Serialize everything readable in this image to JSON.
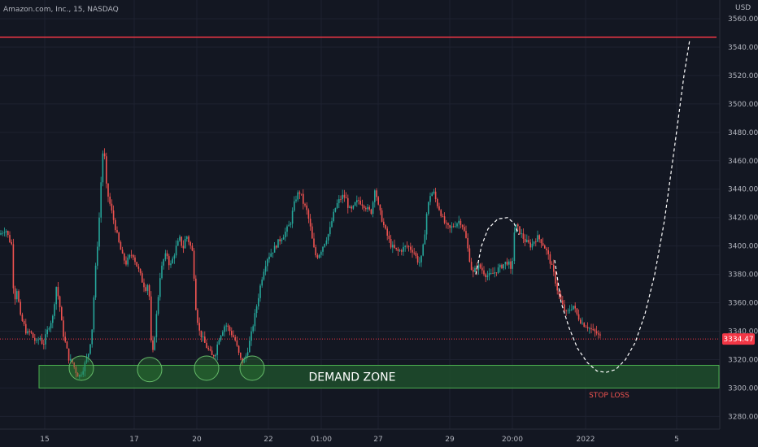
{
  "symbol_title": "Amazon.com, Inc., 15, NASDAQ",
  "currency": "USD",
  "current_price": "3334.47",
  "annotations": {
    "demand_zone": "DEMAND ZONE",
    "stop_loss": "STOP LOSS"
  },
  "colors": {
    "background": "#131722",
    "grid": "#1e2230",
    "axis_text": "#b2b5be",
    "up": "#26a69a",
    "down": "#ef5350",
    "resistance": "#f23645",
    "zone_fill": "#1e4d2b",
    "zone_border": "#4caf50",
    "price_label": "#f23645",
    "projection": "#ffffff"
  },
  "chart_data": {
    "type": "candlestick",
    "title": "Amazon.com, Inc., 15, NASDAQ",
    "ylabel": "USD",
    "ylim": [
      3270,
      3565
    ],
    "y_ticks": [
      "3280.00",
      "3300.00",
      "3320.00",
      "3340.00",
      "3360.00",
      "3380.00",
      "3400.00",
      "3420.00",
      "3440.00",
      "3460.00",
      "3480.00",
      "3500.00",
      "3520.00",
      "3540.00",
      "3560.00"
    ],
    "x_tick_labels": [
      "15",
      "17",
      "20",
      "22",
      "01:00",
      "27",
      "29",
      "20:00",
      "2022",
      "5"
    ],
    "resistance_level": 3547,
    "demand_zone": [
      3300,
      3316
    ],
    "last_price": 3334.47,
    "price_path": [
      [
        0,
        3408
      ],
      [
        4,
        3410
      ],
      [
        8,
        3412
      ],
      [
        12,
        3405
      ],
      [
        16,
        3400
      ],
      [
        18,
        3360
      ],
      [
        22,
        3370
      ],
      [
        26,
        3350
      ],
      [
        30,
        3345
      ],
      [
        34,
        3338
      ],
      [
        38,
        3340
      ],
      [
        42,
        3335
      ],
      [
        46,
        3332
      ],
      [
        50,
        3336
      ],
      [
        54,
        3330
      ],
      [
        58,
        3338
      ],
      [
        62,
        3345
      ],
      [
        66,
        3350
      ],
      [
        70,
        3372
      ],
      [
        74,
        3360
      ],
      [
        78,
        3340
      ],
      [
        82,
        3330
      ],
      [
        86,
        3320
      ],
      [
        90,
        3318
      ],
      [
        94,
        3312
      ],
      [
        98,
        3308
      ],
      [
        102,
        3312
      ],
      [
        106,
        3318
      ],
      [
        110,
        3325
      ],
      [
        114,
        3340
      ],
      [
        118,
        3380
      ],
      [
        122,
        3410
      ],
      [
        124,
        3430
      ],
      [
        126,
        3455
      ],
      [
        128,
        3470
      ],
      [
        130,
        3460
      ],
      [
        132,
        3440
      ],
      [
        136,
        3430
      ],
      [
        140,
        3420
      ],
      [
        144,
        3410
      ],
      [
        148,
        3400
      ],
      [
        152,
        3392
      ],
      [
        156,
        3388
      ],
      [
        160,
        3392
      ],
      [
        164,
        3395
      ],
      [
        168,
        3388
      ],
      [
        172,
        3382
      ],
      [
        176,
        3375
      ],
      [
        180,
        3370
      ],
      [
        184,
        3375
      ],
      [
        186,
        3340
      ],
      [
        188,
        3320
      ],
      [
        190,
        3330
      ],
      [
        194,
        3355
      ],
      [
        198,
        3380
      ],
      [
        202,
        3390
      ],
      [
        206,
        3395
      ],
      [
        210,
        3385
      ],
      [
        214,
        3392
      ],
      [
        218,
        3400
      ],
      [
        222,
        3405
      ],
      [
        226,
        3398
      ],
      [
        230,
        3408
      ],
      [
        234,
        3402
      ],
      [
        238,
        3395
      ],
      [
        242,
        3355
      ],
      [
        246,
        3340
      ],
      [
        250,
        3335
      ],
      [
        254,
        3330
      ],
      [
        258,
        3326
      ],
      [
        262,
        3322
      ],
      [
        266,
        3325
      ],
      [
        270,
        3335
      ],
      [
        274,
        3340
      ],
      [
        278,
        3345
      ],
      [
        282,
        3342
      ],
      [
        286,
        3338
      ],
      [
        290,
        3334
      ],
      [
        294,
        3325
      ],
      [
        298,
        3318
      ],
      [
        302,
        3320
      ],
      [
        306,
        3328
      ],
      [
        310,
        3338
      ],
      [
        314,
        3350
      ],
      [
        318,
        3362
      ],
      [
        322,
        3375
      ],
      [
        326,
        3385
      ],
      [
        330,
        3392
      ],
      [
        334,
        3395
      ],
      [
        338,
        3398
      ],
      [
        342,
        3402
      ],
      [
        346,
        3405
      ],
      [
        350,
        3408
      ],
      [
        354,
        3412
      ],
      [
        358,
        3416
      ],
      [
        362,
        3428
      ],
      [
        366,
        3436
      ],
      [
        370,
        3438
      ],
      [
        374,
        3430
      ],
      [
        378,
        3425
      ],
      [
        382,
        3415
      ],
      [
        386,
        3400
      ],
      [
        390,
        3392
      ],
      [
        394,
        3395
      ],
      [
        398,
        3400
      ],
      [
        402,
        3405
      ],
      [
        406,
        3410
      ],
      [
        410,
        3420
      ],
      [
        414,
        3428
      ],
      [
        418,
        3432
      ],
      [
        422,
        3435
      ],
      [
        426,
        3434
      ],
      [
        430,
        3426
      ],
      [
        434,
        3425
      ],
      [
        438,
        3430
      ],
      [
        442,
        3432
      ],
      [
        446,
        3430
      ],
      [
        450,
        3428
      ],
      [
        454,
        3425
      ],
      [
        458,
        3424
      ],
      [
        462,
        3442
      ],
      [
        466,
        3428
      ],
      [
        470,
        3420
      ],
      [
        474,
        3412
      ],
      [
        478,
        3406
      ],
      [
        482,
        3400
      ],
      [
        486,
        3398
      ],
      [
        490,
        3396
      ],
      [
        494,
        3397
      ],
      [
        498,
        3399
      ],
      [
        502,
        3400
      ],
      [
        506,
        3398
      ],
      [
        510,
        3396
      ],
      [
        514,
        3390
      ],
      [
        518,
        3388
      ],
      [
        522,
        3402
      ],
      [
        526,
        3425
      ],
      [
        530,
        3436
      ],
      [
        534,
        3438
      ],
      [
        538,
        3430
      ],
      [
        542,
        3425
      ],
      [
        546,
        3418
      ],
      [
        550,
        3414
      ],
      [
        554,
        3412
      ],
      [
        558,
        3414
      ],
      [
        562,
        3416
      ],
      [
        566,
        3418
      ],
      [
        570,
        3414
      ],
      [
        574,
        3405
      ],
      [
        578,
        3392
      ],
      [
        582,
        3380
      ],
      [
        586,
        3384
      ],
      [
        590,
        3386
      ],
      [
        594,
        3383
      ],
      [
        598,
        3380
      ],
      [
        602,
        3379
      ],
      [
        606,
        3380
      ],
      [
        610,
        3382
      ],
      [
        614,
        3384
      ],
      [
        618,
        3386
      ],
      [
        622,
        3388
      ],
      [
        626,
        3389
      ],
      [
        630,
        3380
      ],
      [
        634,
        3415
      ],
      [
        638,
        3412
      ],
      [
        642,
        3408
      ],
      [
        646,
        3404
      ],
      [
        650,
        3402
      ],
      [
        654,
        3400
      ],
      [
        658,
        3404
      ],
      [
        662,
        3406
      ],
      [
        666,
        3404
      ],
      [
        670,
        3400
      ],
      [
        674,
        3395
      ],
      [
        678,
        3388
      ],
      [
        682,
        3380
      ],
      [
        686,
        3370
      ],
      [
        690,
        3362
      ],
      [
        694,
        3356
      ],
      [
        698,
        3352
      ],
      [
        702,
        3356
      ],
      [
        706,
        3358
      ],
      [
        710,
        3352
      ],
      [
        714,
        3348
      ],
      [
        718,
        3345
      ],
      [
        722,
        3344
      ],
      [
        726,
        3342
      ],
      [
        730,
        3340
      ],
      [
        734,
        3339
      ],
      [
        738,
        3336
      ]
    ],
    "projection": [
      [
        682,
        3390
      ],
      [
        690,
        3360
      ],
      [
        700,
        3342
      ],
      [
        710,
        3328
      ],
      [
        722,
        3318
      ],
      [
        734,
        3312
      ],
      [
        745,
        3311
      ],
      [
        757,
        3313
      ],
      [
        769,
        3320
      ],
      [
        781,
        3332
      ],
      [
        793,
        3352
      ],
      [
        805,
        3380
      ],
      [
        817,
        3418
      ],
      [
        829,
        3468
      ],
      [
        841,
        3520
      ],
      [
        848,
        3545
      ]
    ],
    "arc": [
      [
        585,
        3380
      ],
      [
        592,
        3400
      ],
      [
        600,
        3412
      ],
      [
        612,
        3419
      ],
      [
        624,
        3420
      ],
      [
        632,
        3416
      ],
      [
        638,
        3408
      ]
    ],
    "marked_lows": [
      [
        100,
        3314
      ],
      [
        184,
        3313
      ],
      [
        254,
        3314
      ],
      [
        310,
        3314
      ]
    ]
  }
}
